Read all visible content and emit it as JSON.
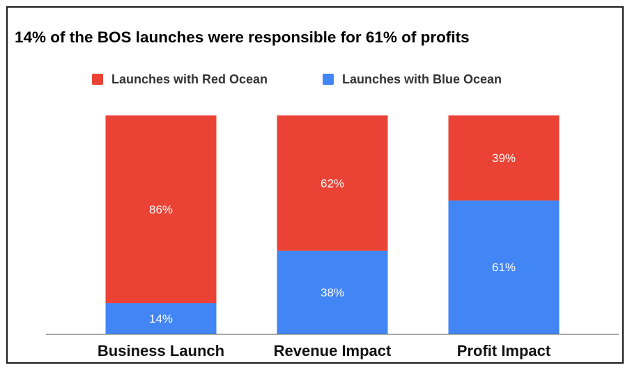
{
  "chart_data": {
    "type": "bar",
    "stacked": true,
    "title": "14% of the BOS launches were responsible for 61% of profits",
    "categories": [
      "Business Launch",
      "Revenue Impact",
      "Profit Impact"
    ],
    "series": [
      {
        "name": "Launches with Blue Ocean",
        "values": [
          14,
          38,
          61
        ],
        "labels": [
          "14%",
          "38%",
          "61%"
        ],
        "color": "#4285f4"
      },
      {
        "name": "Launches with Red Ocean",
        "values": [
          86,
          62,
          39
        ],
        "labels": [
          "86%",
          "62%",
          "39%"
        ],
        "color": "#ea4335"
      }
    ],
    "ylim": [
      0,
      100
    ],
    "legend_position": "top-center",
    "grid": false
  }
}
